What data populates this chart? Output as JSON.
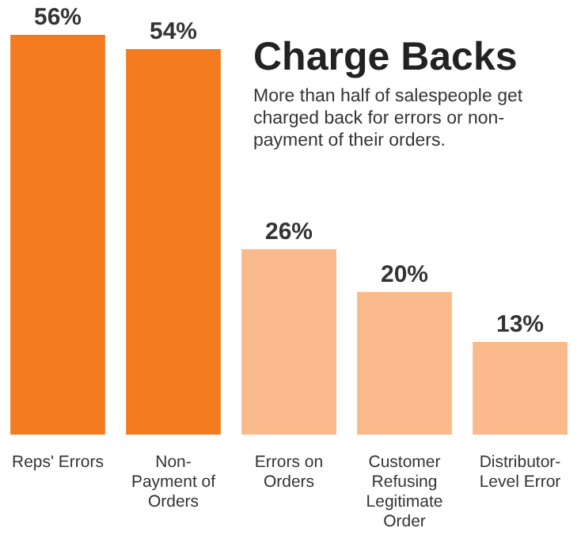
{
  "chart_data": {
    "type": "bar",
    "title": "Charge Backs",
    "subtitle": "More than half of salespeople get charged back for errors or non-payment of their orders.",
    "categories": [
      "Reps' Errors",
      "Non-Payment of Orders",
      "Errors on Orders",
      "Customer Refusing Legitimate Order",
      "Distributor-Level Error"
    ],
    "values": [
      56,
      54,
      26,
      20,
      13
    ],
    "value_labels": [
      "56%",
      "54%",
      "26%",
      "20%",
      "13%"
    ],
    "colors": [
      "#f47b20",
      "#f47b20",
      "#f9b98a",
      "#f9b98a",
      "#f9b98a"
    ],
    "ylim": [
      0,
      56
    ],
    "tick_labels": "x"
  }
}
